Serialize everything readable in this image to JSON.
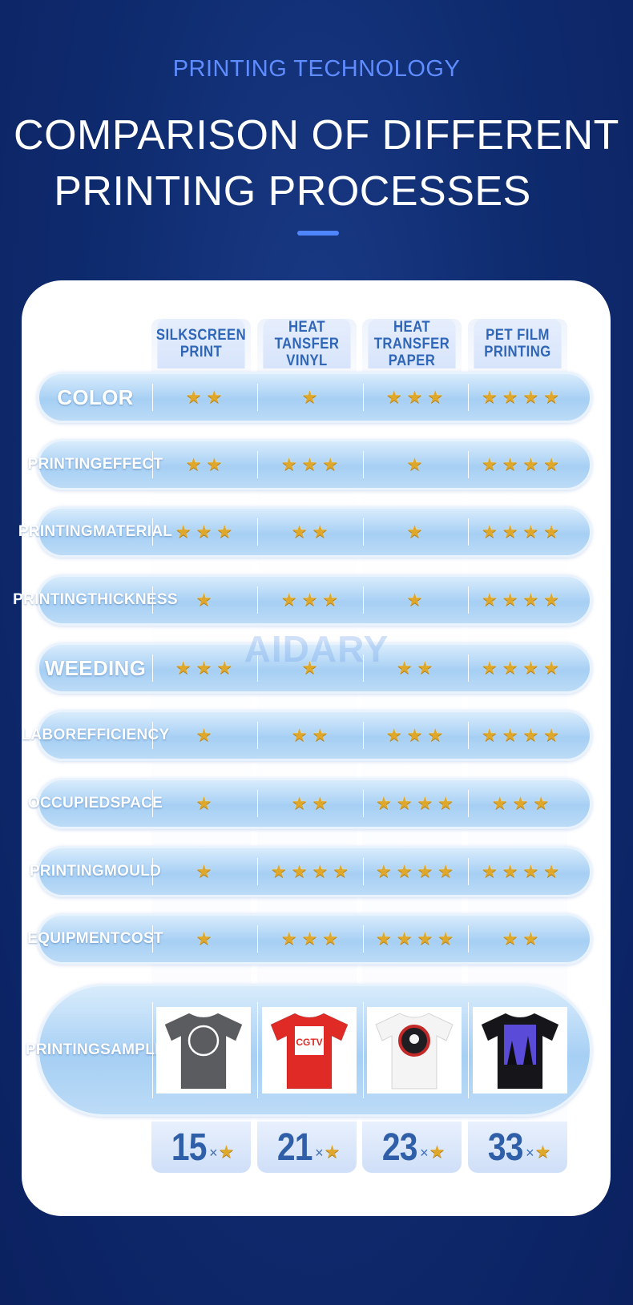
{
  "header": {
    "kicker": "PRINTING TECHNOLOGY",
    "title_line1": "COMPARISON OF DIFFERENT",
    "title_line2": "PRINTING PROCESSES"
  },
  "watermark": "AIDARY",
  "star_glyph": "★",
  "multiply_sign": "×",
  "columns": [
    {
      "line1": "SILKSCREEN",
      "line2": "PRINT"
    },
    {
      "line1": "HEAT TANSFER",
      "line2": "VINYL"
    },
    {
      "line1": "HEAT TRANSFER",
      "line2": "PAPER"
    },
    {
      "line1": "PET FILM",
      "line2": "PRINTING"
    }
  ],
  "rows": [
    {
      "label1": "COLOR",
      "label2": "",
      "ratings": [
        2,
        1,
        3,
        4
      ]
    },
    {
      "label1": "PRINTING",
      "label2": "EFFECT",
      "ratings": [
        2,
        3,
        1,
        4
      ]
    },
    {
      "label1": "PRINTING",
      "label2": "MATERIAL",
      "ratings": [
        3,
        2,
        1,
        4
      ]
    },
    {
      "label1": "PRINTING",
      "label2": "THICKNESS",
      "ratings": [
        1,
        3,
        1,
        4
      ]
    },
    {
      "label1": "WEEDING",
      "label2": "",
      "ratings": [
        3,
        1,
        2,
        4
      ]
    },
    {
      "label1": "LABOR",
      "label2": "EFFICIENCY",
      "ratings": [
        1,
        2,
        3,
        4
      ]
    },
    {
      "label1": "OCCUPIED",
      "label2": "SPACE",
      "ratings": [
        1,
        2,
        4,
        3
      ]
    },
    {
      "label1": "PRINTING",
      "label2": "MOULD",
      "ratings": [
        1,
        4,
        4,
        4
      ]
    },
    {
      "label1": "EQUIPMENT",
      "label2": "COST",
      "ratings": [
        1,
        3,
        4,
        2
      ]
    }
  ],
  "sample_row": {
    "label1": "PRINTING",
    "label2": "SAMPLE",
    "samples": [
      {
        "icon": "grey-tshirt-circle-logo-icon",
        "shirt_color": "#5a5c60",
        "print_color": "#ffffff"
      },
      {
        "icon": "red-tshirt-cgtv-logo-icon",
        "shirt_color": "#e02a26",
        "print_color": "#ffffff",
        "text": "CGTV"
      },
      {
        "icon": "white-tshirt-skull-roundel-icon",
        "shirt_color": "#f4f4f4",
        "print_color": "#c22a2a"
      },
      {
        "icon": "black-tshirt-galaxy-forest-icon",
        "shirt_color": "#16161a",
        "print_color": "#5a4bd8"
      }
    ]
  },
  "totals": [
    "15",
    "21",
    "23",
    "33"
  ]
}
